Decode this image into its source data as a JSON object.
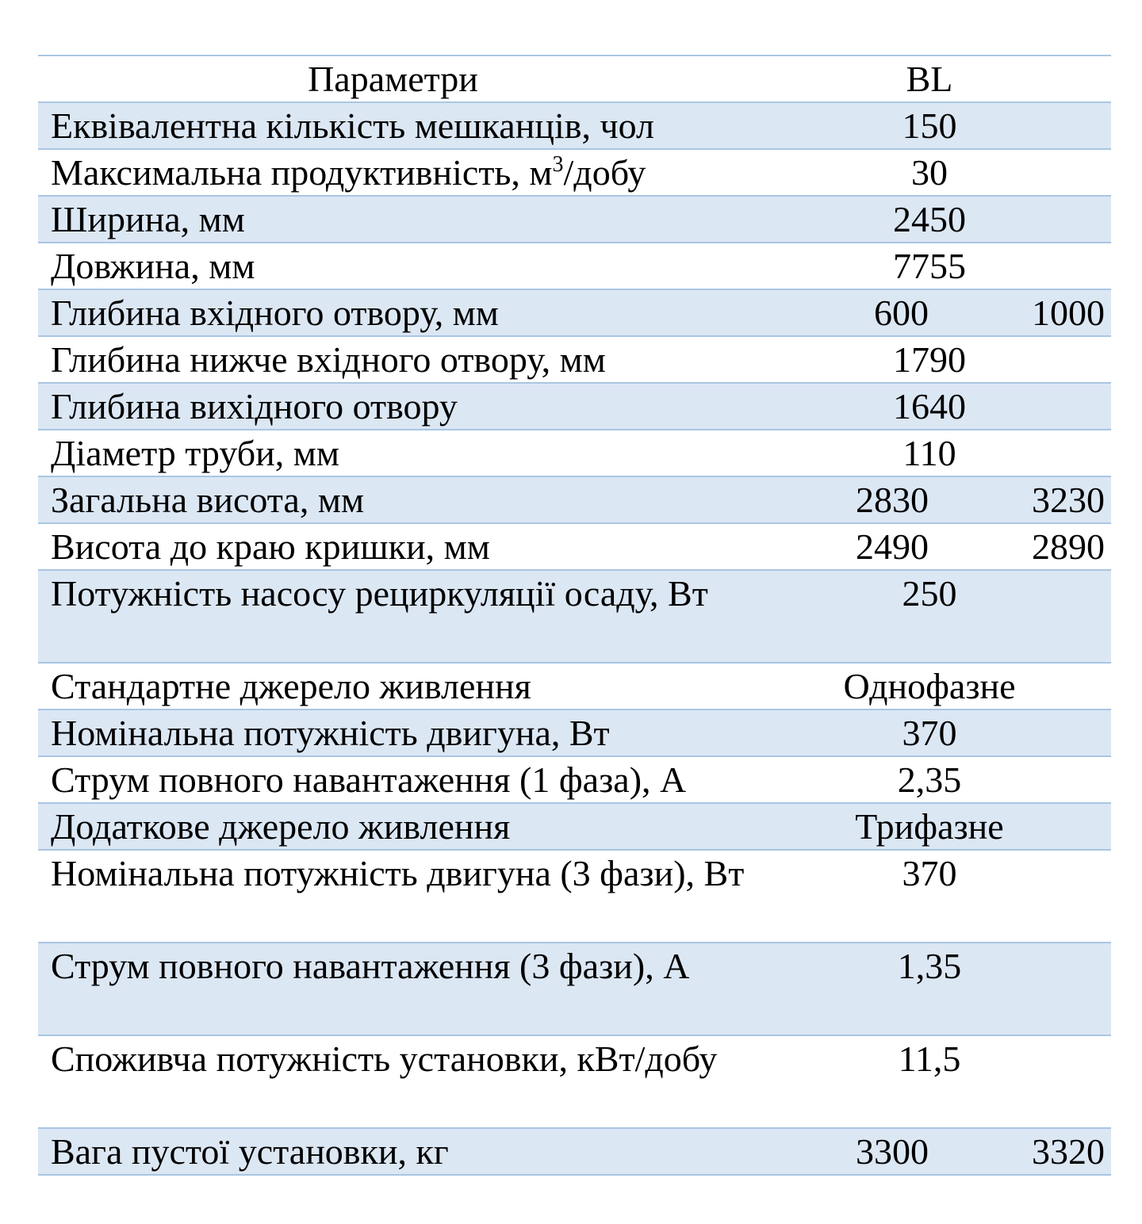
{
  "table": {
    "header": {
      "param": "Параметри",
      "model": "BL"
    },
    "rows": [
      {
        "label": "Еквівалентна кількість мешканців, чол",
        "value": "150"
      },
      {
        "label_pre": "Максимальна продуктивність, м",
        "label_sup": "3",
        "label_post": "/добу",
        "value": "30"
      },
      {
        "label": "Ширина, мм",
        "value": "2450"
      },
      {
        "label": "Довжина, мм",
        "value": "7755"
      },
      {
        "label": "Глибина вхідного отвору, мм",
        "value1": "600",
        "value2": "1000"
      },
      {
        "label": "Глибина нижче вхідного отвору, мм",
        "value": "1790"
      },
      {
        "label": "Глибина вихідного отвору",
        "value": "1640"
      },
      {
        "label": "Діаметр труби, мм",
        "value": "110"
      },
      {
        "label": "Загальна висота, мм",
        "value1": "2830",
        "value2": "3230"
      },
      {
        "label": "Висота до краю кришки, мм",
        "value1": "2490",
        "value2": "2890"
      },
      {
        "label": "Потужність насосу рециркуляції осаду, Вт",
        "value": "250"
      },
      {
        "label": "Стандартне джерело живлення",
        "value": "Однофазне"
      },
      {
        "label": "Номінальна потужність двигуна, Вт",
        "value": "370"
      },
      {
        "label": "Струм повного навантаження (1 фаза), А",
        "value": "2,35"
      },
      {
        "label": "Додаткове джерело живлення",
        "value": "Трифазне"
      },
      {
        "label": "Номінальна потужність двигуна (3 фази), Вт",
        "value": "370"
      },
      {
        "label": "Струм повного навантаження (3 фази), А",
        "value": "1,35"
      },
      {
        "label": "Споживча потужність установки, кВт/добу",
        "value": "11,5"
      },
      {
        "label": "Вага пустої установки, кг",
        "value1": "3300",
        "value2": "3320"
      }
    ]
  }
}
